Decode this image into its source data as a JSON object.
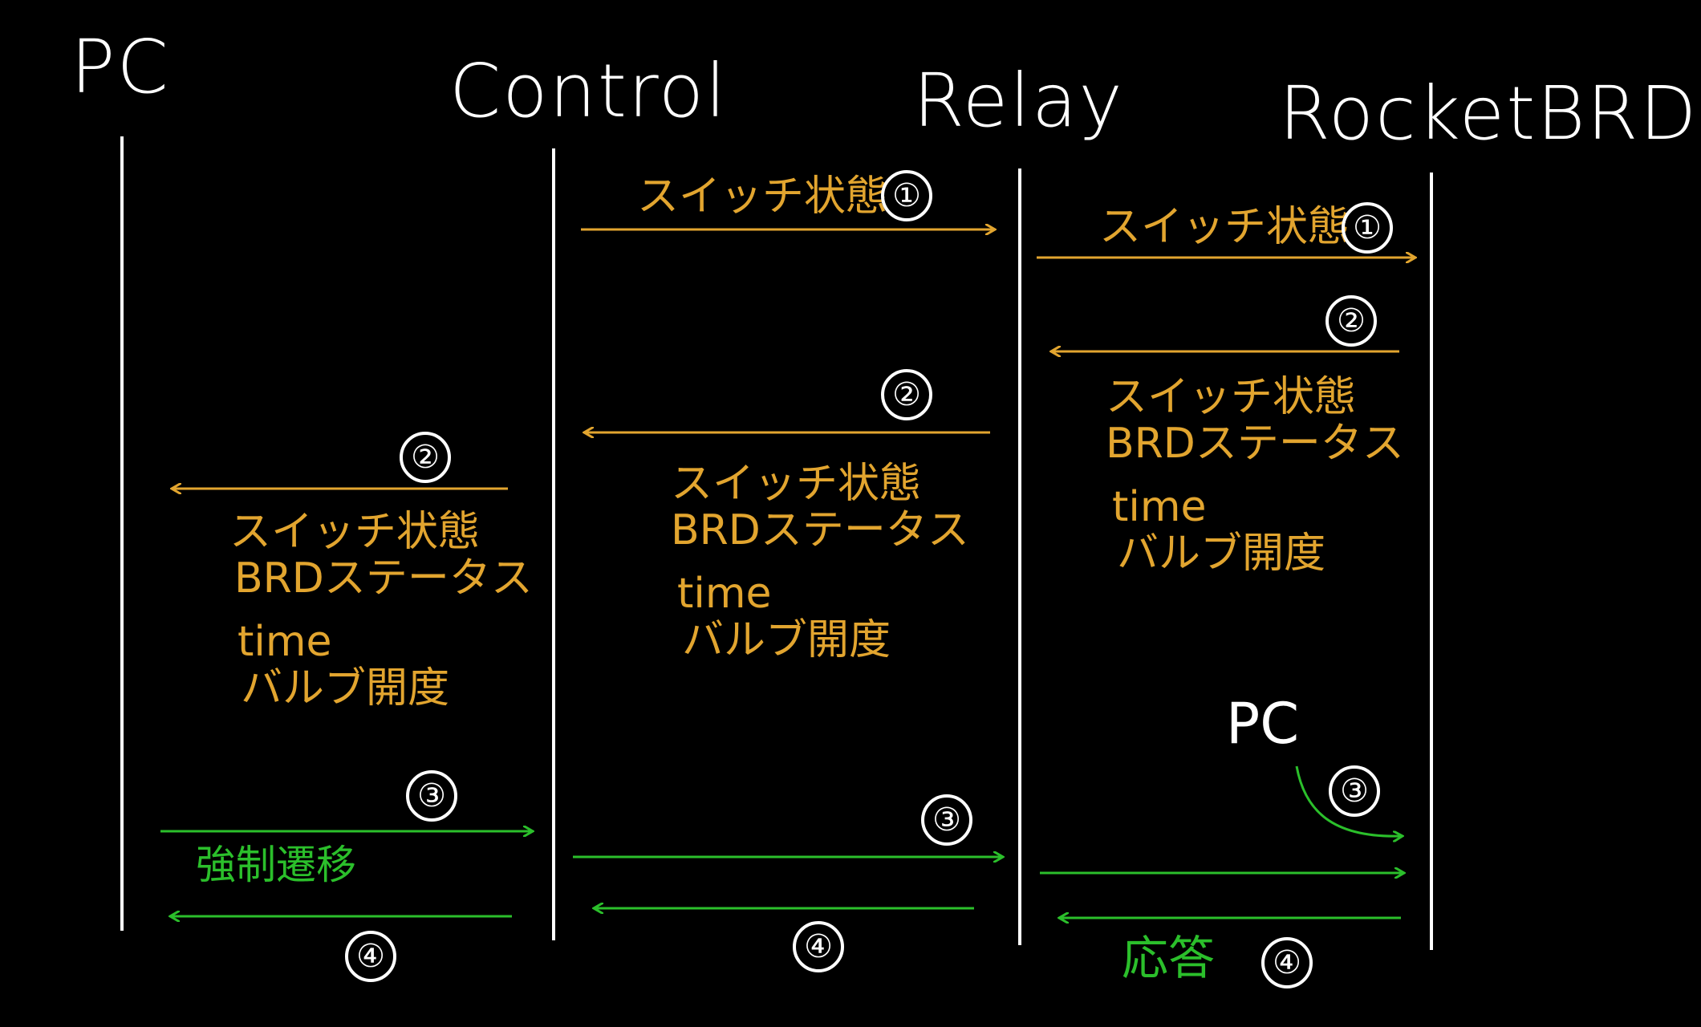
{
  "actors": {
    "pc": "PC",
    "control": "Control",
    "relay": "Relay",
    "rocket": "RocketBRD"
  },
  "labels": {
    "switch_state": "スイッチ状態",
    "brd_status": "BRDステータス",
    "time": "time",
    "valve": "バルブ開度",
    "forced": "強制遷移",
    "pc_note": "PC",
    "response": "応答"
  },
  "numbers": {
    "n1": "①",
    "n2": "②",
    "n3": "③",
    "n4": "④"
  },
  "colors": {
    "background": "#000000",
    "line": "#ffffff",
    "state_msg": "#e2a52f",
    "command_msg": "#2bbf2b"
  }
}
